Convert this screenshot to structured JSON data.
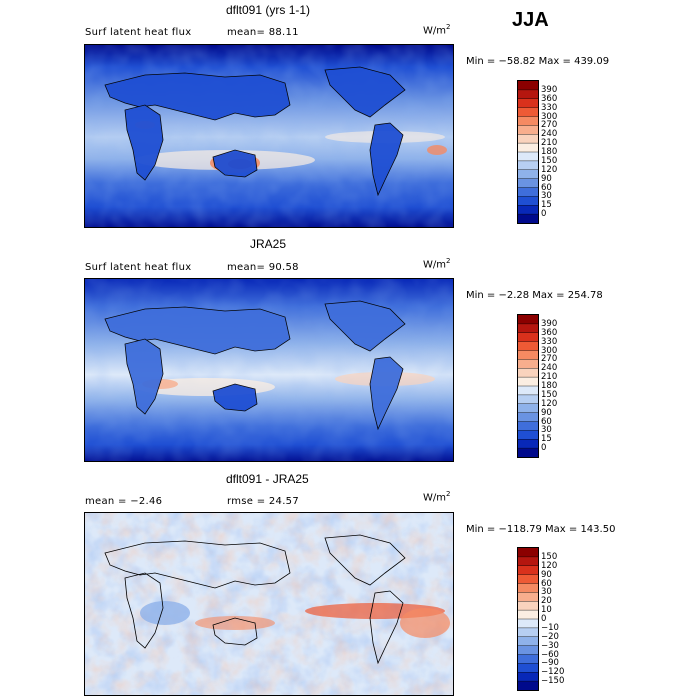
{
  "season": "JJA",
  "units_base": "W/m",
  "units_exp": "2",
  "panels": [
    {
      "title": "dflt091 (yrs 1-1)",
      "field_label": "Surf latent heat flux",
      "stat_text": "mean=  88.11",
      "minmax": "Min = −58.82 Max = 439.09",
      "colorbar_ticks": [
        "390",
        "360",
        "330",
        "300",
        "270",
        "240",
        "210",
        "180",
        "150",
        "120",
        "90",
        "60",
        "30",
        "15",
        "0"
      ],
      "colors": [
        "#8b0000",
        "#b5160f",
        "#d9311c",
        "#ee5a35",
        "#f58a62",
        "#f8ae8d",
        "#f9d3bd",
        "#fbeee2",
        "#dde9f9",
        "#b7cff2",
        "#8fb2ea",
        "#6a93e2",
        "#3f6edb",
        "#1f4fd3",
        "#0828b8",
        "#000a8c"
      ]
    },
    {
      "title": "JRA25",
      "field_label": "Surf latent heat flux",
      "stat_text": "mean=  90.58",
      "minmax": "Min =  −2.28 Max = 254.78",
      "colorbar_ticks": [
        "390",
        "360",
        "330",
        "300",
        "270",
        "240",
        "210",
        "180",
        "150",
        "120",
        "90",
        "60",
        "30",
        "15",
        "0"
      ],
      "colors": [
        "#8b0000",
        "#b5160f",
        "#d9311c",
        "#ee5a35",
        "#f58a62",
        "#f8ae8d",
        "#f9d3bd",
        "#fbeee2",
        "#dde9f9",
        "#b7cff2",
        "#8fb2ea",
        "#6a93e2",
        "#3f6edb",
        "#1f4fd3",
        "#0828b8",
        "#000a8c"
      ]
    },
    {
      "title": "dflt091 - JRA25",
      "field_label": "mean =  −2.46",
      "stat_text": "rmse =  24.57",
      "minmax": "Min = −118.79 Max = 143.50",
      "colorbar_ticks": [
        "150",
        "120",
        "90",
        "60",
        "30",
        "20",
        "10",
        "0",
        "−10",
        "−20",
        "−30",
        "−60",
        "−90",
        "−120",
        "−150"
      ],
      "colors": [
        "#8b0000",
        "#b5160f",
        "#d9311c",
        "#ee5a35",
        "#f58a62",
        "#f8ae8d",
        "#f9d3bd",
        "#fbeee2",
        "#dde9f9",
        "#b7cff2",
        "#8fb2ea",
        "#6a93e2",
        "#3f6edb",
        "#1f4fd3",
        "#0828b8",
        "#000a8c"
      ]
    }
  ],
  "chart_data": [
    {
      "type": "heatmap",
      "title": "dflt091 (yrs 1-1)",
      "subtitle": "Surf latent heat flux",
      "units": "W/m2",
      "mean": 88.11,
      "min": -58.82,
      "max": 439.09,
      "levels": [
        0,
        15,
        30,
        60,
        90,
        120,
        150,
        180,
        210,
        240,
        270,
        300,
        330,
        360,
        390
      ],
      "season": "JJA"
    },
    {
      "type": "heatmap",
      "title": "JRA25",
      "subtitle": "Surf latent heat flux",
      "units": "W/m2",
      "mean": 90.58,
      "min": -2.28,
      "max": 254.78,
      "levels": [
        0,
        15,
        30,
        60,
        90,
        120,
        150,
        180,
        210,
        240,
        270,
        300,
        330,
        360,
        390
      ],
      "season": "JJA"
    },
    {
      "type": "heatmap",
      "title": "dflt091 - JRA25",
      "units": "W/m2",
      "mean": -2.46,
      "rmse": 24.57,
      "min": -118.79,
      "max": 143.5,
      "levels": [
        -150,
        -120,
        -90,
        -60,
        -30,
        -20,
        -10,
        0,
        10,
        20,
        30,
        60,
        90,
        120,
        150
      ],
      "season": "JJA"
    }
  ]
}
